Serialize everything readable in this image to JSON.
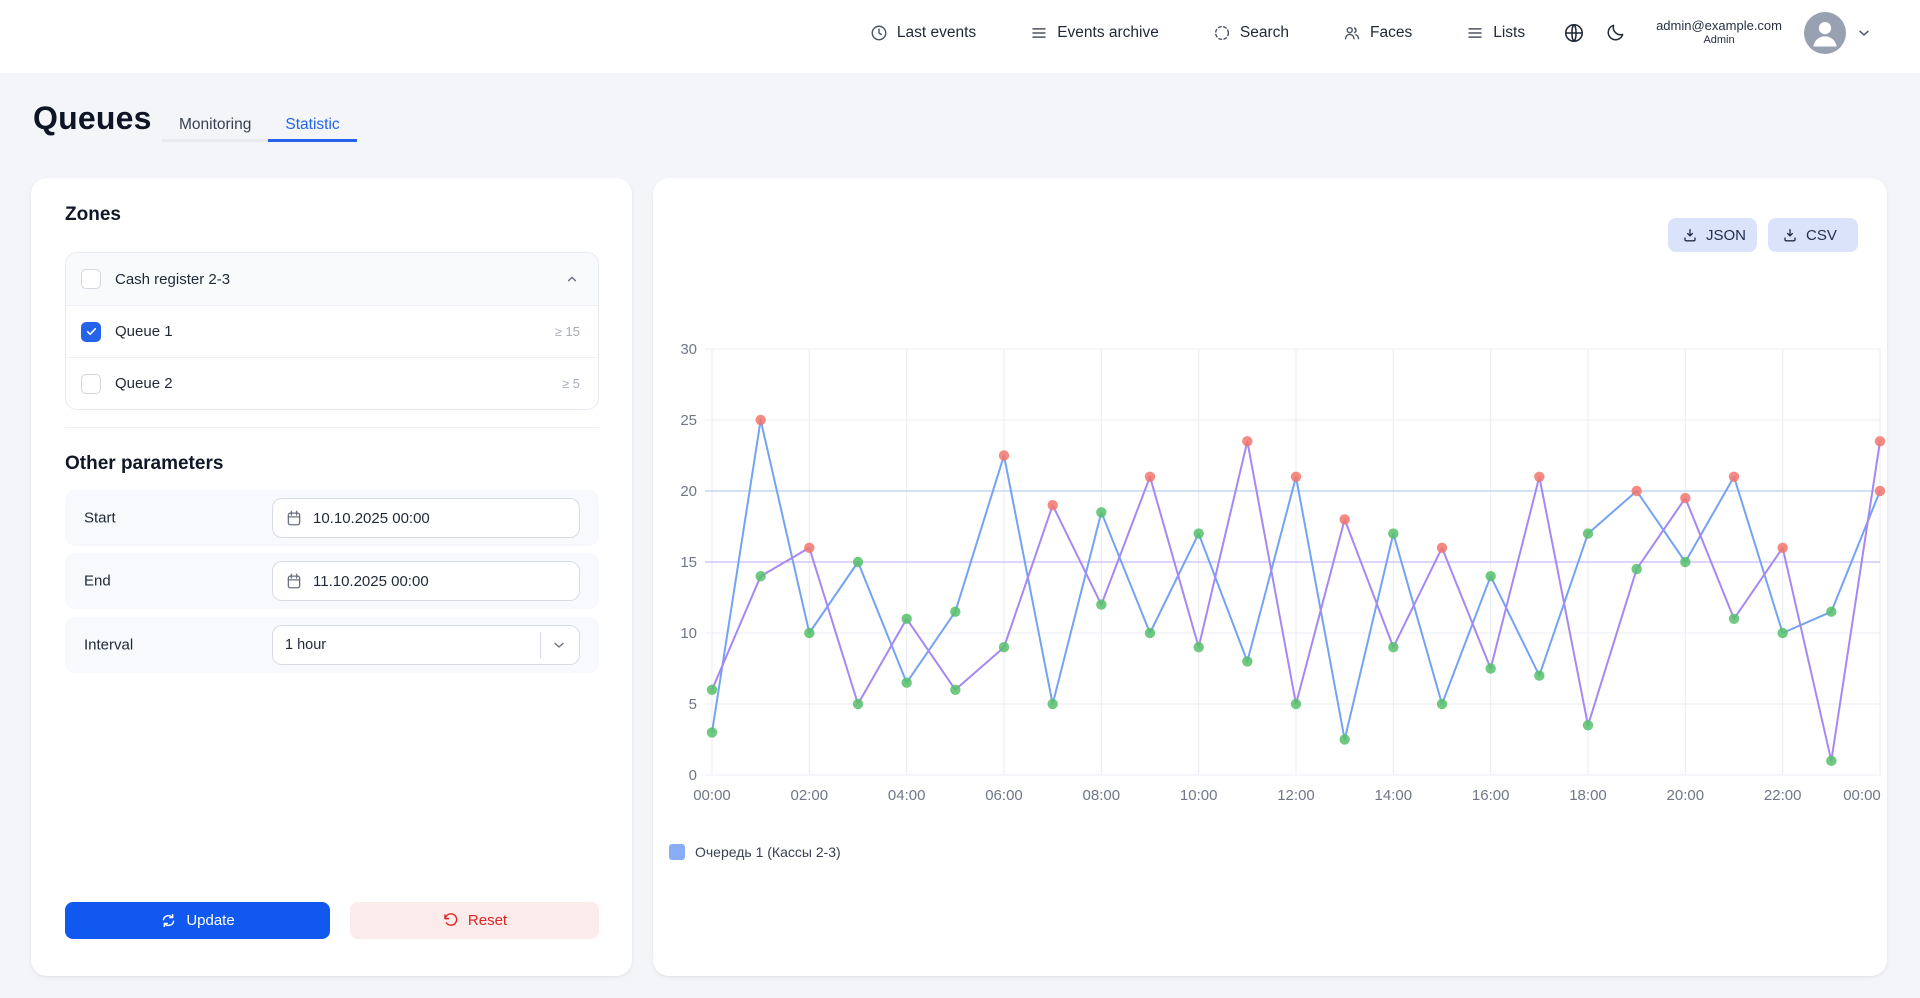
{
  "header": {
    "nav": [
      {
        "label": "Last events"
      },
      {
        "label": "Events archive"
      },
      {
        "label": "Search"
      },
      {
        "label": "Faces"
      },
      {
        "label": "Lists"
      }
    ],
    "user": {
      "email": "admin@example.com",
      "role": "Admin"
    }
  },
  "page": {
    "title": "Queues"
  },
  "tabs": [
    {
      "label": "Monitoring",
      "active": false
    },
    {
      "label": "Statistic",
      "active": true
    }
  ],
  "zones": {
    "title": "Zones",
    "group": {
      "label": "Cash register 2-3",
      "checked": false
    },
    "items": [
      {
        "label": "Queue 1",
        "checked": true,
        "threshold": "≥ 15"
      },
      {
        "label": "Queue 2",
        "checked": false,
        "threshold": "≥ 5"
      }
    ]
  },
  "params": {
    "title": "Other parameters",
    "start_label": "Start",
    "start_value": "10.10.2025 00:00",
    "end_label": "End",
    "end_value": "11.10.2025 00:00",
    "interval_label": "Interval",
    "interval_value": "1 hour"
  },
  "actions": {
    "update": "Update",
    "reset": "Reset"
  },
  "export": {
    "json": "JSON",
    "csv": "CSV"
  },
  "chart_data": {
    "type": "line",
    "x_tick_labels": [
      "00:00",
      "02:00",
      "04:00",
      "06:00",
      "08:00",
      "10:00",
      "12:00",
      "14:00",
      "16:00",
      "18:00",
      "20:00",
      "22:00",
      "00:00"
    ],
    "hours_span": 24,
    "yticks": [
      0,
      5,
      10,
      15,
      20,
      25,
      30
    ],
    "ylim": [
      0,
      30
    ],
    "series": [
      {
        "name": "Queue 1 (blue line)",
        "line_color": "#74a3f3",
        "threshold": 20,
        "threshold_line_color": "#b9cef8",
        "values": [
          3,
          25,
          10,
          15,
          6.5,
          11.5,
          22.5,
          5,
          18.5,
          10,
          17,
          8,
          21,
          2.5,
          17,
          5,
          14,
          7,
          17,
          20,
          15,
          21,
          10,
          11.5,
          20
        ]
      },
      {
        "name": "Queue 1 (purple line)",
        "line_color": "#a688f2",
        "threshold": 15,
        "threshold_line_color": "#ccbbf8",
        "values": [
          6,
          14,
          16,
          5,
          11,
          6,
          9,
          19,
          12,
          21,
          9,
          23.5,
          5,
          18,
          9,
          16,
          7.5,
          21,
          3.5,
          14.5,
          19.5,
          11,
          16,
          1,
          23.5
        ]
      }
    ],
    "point_color_normal": "#56c16a",
    "point_color_alert": "#f3756c",
    "grid_color": "#e9edf4",
    "axis_text_color": "#6f7787",
    "legend": [
      {
        "label": "Очередь 1 (Кассы 2-3)",
        "swatch": "#8aaef5"
      }
    ]
  }
}
